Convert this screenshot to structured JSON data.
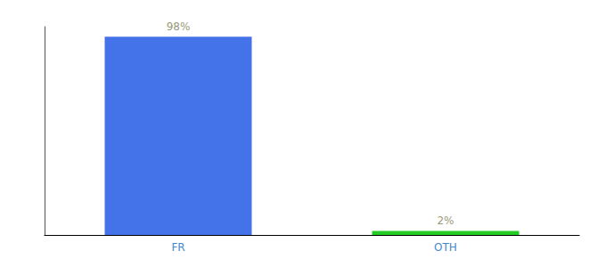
{
  "chart_data": {
    "type": "bar",
    "categories": [
      "FR",
      "OTH"
    ],
    "values": [
      98,
      2
    ],
    "value_labels": [
      "98%",
      "2%"
    ],
    "colors": [
      "#4472e8",
      "#22cc22"
    ],
    "ylim": [
      0,
      103
    ],
    "yticks": [],
    "tick_labels": "x",
    "grid": false,
    "data_labels": true
  }
}
